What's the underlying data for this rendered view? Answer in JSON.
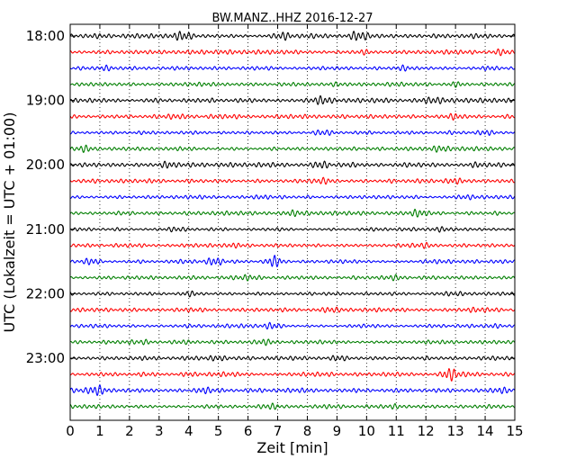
{
  "chart_data": {
    "type": "line",
    "title": "BW.MANZ..HHZ 2016-12-27",
    "xlabel": "Zeit  [min]",
    "ylabel": "UTC (Lokalzeit = UTC + 01:00)",
    "xlim": [
      0,
      15
    ],
    "x_ticks": [
      "0",
      "1",
      "2",
      "3",
      "4",
      "5",
      "6",
      "7",
      "8",
      "9",
      "10",
      "11",
      "12",
      "13",
      "14",
      "15"
    ],
    "y_tick_labels": [
      "18:00",
      "19:00",
      "20:00",
      "21:00",
      "22:00",
      "23:00"
    ],
    "grid": "vertical-dotted",
    "trace_colors": [
      "#000000",
      "#ff0000",
      "#0000ff",
      "#007f00"
    ],
    "trace_interval_min": 15,
    "traces": [
      {
        "start": "18:00",
        "amp": 0.9,
        "bursts": [
          [
            3.8,
            1.0
          ],
          [
            9.7,
            1.0
          ],
          [
            7.2,
            0.6
          ]
        ]
      },
      {
        "start": "18:15",
        "amp": 0.85,
        "bursts": [
          [
            9.9,
            0.6
          ],
          [
            14.6,
            0.6
          ]
        ]
      },
      {
        "start": "18:30",
        "amp": 0.7,
        "bursts": [
          [
            1.2,
            0.5
          ],
          [
            11.2,
            0.5
          ],
          [
            14.2,
            0.6
          ]
        ]
      },
      {
        "start": "18:45",
        "amp": 0.75,
        "bursts": [
          [
            9.0,
            0.5
          ],
          [
            13.0,
            0.6
          ]
        ]
      },
      {
        "start": "19:00",
        "amp": 0.85,
        "bursts": [
          [
            8.5,
            0.8
          ],
          [
            12.3,
            0.6
          ]
        ]
      },
      {
        "start": "19:15",
        "amp": 0.8,
        "bursts": [
          [
            13.0,
            0.8
          ],
          [
            3.5,
            0.4
          ]
        ]
      },
      {
        "start": "19:30",
        "amp": 0.7,
        "bursts": [
          [
            14.0,
            0.6
          ],
          [
            8.5,
            0.4
          ]
        ]
      },
      {
        "start": "19:45",
        "amp": 0.75,
        "bursts": [
          [
            0.5,
            0.6
          ],
          [
            12.5,
            0.6
          ]
        ]
      },
      {
        "start": "20:00",
        "amp": 0.85,
        "bursts": [
          [
            3.3,
            0.8
          ],
          [
            8.5,
            0.7
          ],
          [
            13.8,
            0.5
          ]
        ]
      },
      {
        "start": "20:15",
        "amp": 0.8,
        "bursts": [
          [
            8.5,
            0.6
          ],
          [
            13.0,
            0.5
          ]
        ]
      },
      {
        "start": "20:30",
        "amp": 0.7,
        "bursts": [
          [
            6.5,
            0.4
          ],
          [
            13.5,
            0.5
          ]
        ]
      },
      {
        "start": "20:45",
        "amp": 0.75,
        "bursts": [
          [
            11.8,
            0.9
          ],
          [
            7.5,
            0.6
          ]
        ]
      },
      {
        "start": "21:00",
        "amp": 0.65,
        "bursts": [
          [
            12.5,
            0.5
          ],
          [
            3.5,
            0.4
          ]
        ]
      },
      {
        "start": "21:15",
        "amp": 0.7,
        "bursts": [
          [
            5.5,
            0.5
          ],
          [
            12.0,
            0.5
          ]
        ]
      },
      {
        "start": "21:30",
        "amp": 0.75,
        "bursts": [
          [
            6.9,
            1.4
          ],
          [
            4.9,
            1.0
          ],
          [
            0.7,
            0.6
          ]
        ]
      },
      {
        "start": "21:45",
        "amp": 0.7,
        "bursts": [
          [
            6.0,
            0.5
          ],
          [
            11.0,
            0.5
          ]
        ]
      },
      {
        "start": "22:00",
        "amp": 0.7,
        "bursts": [
          [
            4.0,
            0.4
          ],
          [
            12.8,
            0.5
          ]
        ]
      },
      {
        "start": "22:15",
        "amp": 0.75,
        "bursts": [
          [
            8.8,
            0.6
          ],
          [
            13.6,
            0.6
          ]
        ]
      },
      {
        "start": "22:30",
        "amp": 0.7,
        "bursts": [
          [
            6.8,
            0.7
          ],
          [
            14.3,
            0.5
          ]
        ]
      },
      {
        "start": "22:45",
        "amp": 0.8,
        "bursts": [
          [
            2.5,
            0.6
          ],
          [
            6.5,
            0.6
          ]
        ]
      },
      {
        "start": "23:00",
        "amp": 0.75,
        "bursts": [
          [
            5.0,
            0.6
          ],
          [
            9.0,
            0.6
          ]
        ]
      },
      {
        "start": "23:15",
        "amp": 0.85,
        "bursts": [
          [
            12.8,
            1.9
          ],
          [
            4.0,
            0.6
          ]
        ]
      },
      {
        "start": "23:30",
        "amp": 0.8,
        "bursts": [
          [
            0.9,
            1.3
          ],
          [
            4.5,
            0.5
          ],
          [
            14.5,
            0.5
          ]
        ]
      },
      {
        "start": "23:45",
        "amp": 0.75,
        "bursts": [
          [
            6.8,
            0.6
          ],
          [
            11.0,
            0.5
          ]
        ]
      }
    ]
  }
}
